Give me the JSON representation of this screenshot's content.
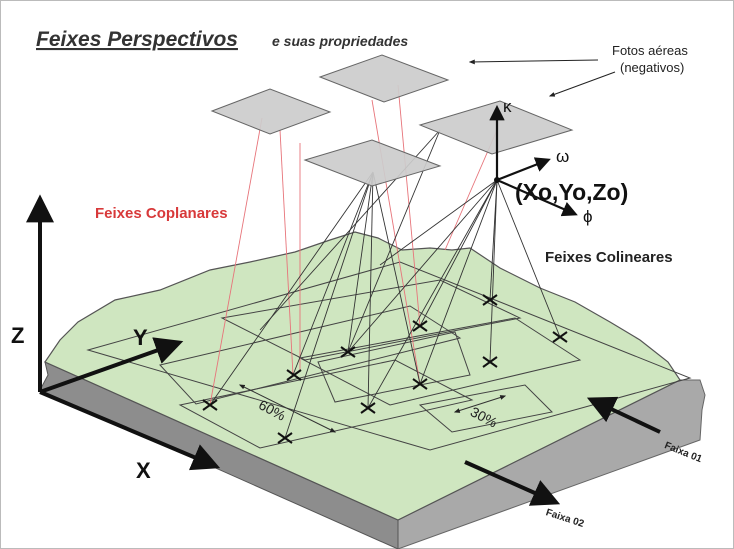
{
  "title": {
    "main": "Feixes Perspectivos",
    "sub": "e suas propriedades"
  },
  "labels": {
    "fotos_line1": "Fotos aéreas",
    "fotos_line2": "(negativos)",
    "coplanares": "Feixes Coplanares",
    "colineares": "Feixes Colineares",
    "coords": "(Xo,Yo,Zo)",
    "kappa": "κ",
    "omega": "ω",
    "phi": "ϕ",
    "axis_x": "X",
    "axis_y": "Y",
    "axis_z": "Z",
    "overlap_60": "60%",
    "overlap_30": "30%",
    "faixa_01": "Faixa 01",
    "faixa_02": "Faixa 02"
  },
  "colors": {
    "terrain_top": "#cfe6c0",
    "terrain_side": "#a9a9a9",
    "terrain_dark": "#5a5a5a",
    "photo_fill": "#cccccc",
    "ray_red": "#e7747a",
    "ray_dark": "#333333",
    "title_red": "#d8393a"
  }
}
